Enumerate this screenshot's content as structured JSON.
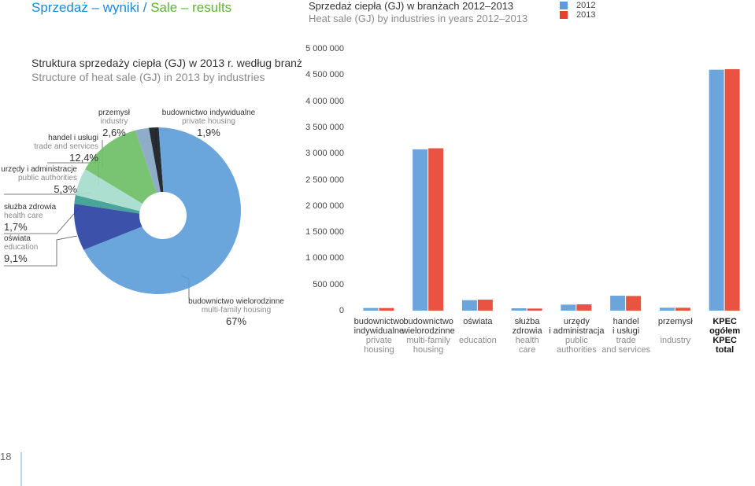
{
  "header": {
    "title_pl": "Sprzedaż – wyniki / ",
    "title_en": "Sale – results"
  },
  "page_number": "18",
  "chart_data": [
    {
      "type": "pie",
      "title": "Struktura sprzedaży ciepła (GJ) w 2013 r. według branż",
      "subtitle": "Structure of heat sale (GJ) in 2013 by industries",
      "categories": [
        "budownictwo indywidualne",
        "budownictwo wielorodzinne",
        "oświata",
        "służba zdrowia",
        "urzędy i administracje",
        "handel i usługi",
        "przemysł"
      ],
      "categories_en": [
        "private housing",
        "multi-family housing",
        "education",
        "health care",
        "public authorities",
        "trade and services",
        "industry"
      ],
      "values": [
        1.9,
        67,
        9.1,
        1.7,
        5.3,
        12.4,
        2.6
      ],
      "value_labels": [
        "1,9%",
        "67%",
        "9,1%",
        "1,7%",
        "5,3%",
        "12,4%",
        "2,6%"
      ],
      "colors": [
        "#151a22",
        "#5d9ed8",
        "#2b43a3",
        "#3a9c90",
        "#a6dccd",
        "#6cbf66",
        "#86a6c4"
      ]
    },
    {
      "type": "bar",
      "title": "Sprzedaż ciepła (GJ) w branżach 2012–2013",
      "subtitle": "Heat sale (GJ) by industries in years 2012–2013",
      "categories": [
        "budownictwo\nindywidualne",
        "budownictwo\nwielorodzinne",
        "oświata",
        "służba\nzdrowia",
        "urzędy\ni administracja",
        "handel\ni usługi",
        "przemysł",
        "KPEC\nogółem"
      ],
      "categories_en": [
        "private\nhousing",
        "multi-family\nhousing",
        "education",
        "health\ncare",
        "public\nauthorities",
        "trade\nand services",
        "industry",
        "KPEC\ntotal"
      ],
      "series": [
        {
          "name": "2012",
          "color": "#5b9bd8",
          "values": [
            50000,
            3080000,
            200000,
            45000,
            115000,
            285000,
            55000,
            4600000
          ]
        },
        {
          "name": "2013",
          "color": "#e8402e",
          "values": [
            50000,
            3100000,
            210000,
            40000,
            120000,
            280000,
            55000,
            4610000
          ]
        }
      ],
      "ylim": [
        0,
        5000000
      ],
      "yticks": [
        0,
        {
          "value": 500000,
          "label": "500 000"
        },
        {
          "value": 1000000,
          "label": "1 000 000"
        },
        {
          "value": 1500000,
          "label": "1 500 000"
        },
        {
          "value": 2000000,
          "label": "2 000 000"
        },
        {
          "value": 2500000,
          "label": "2 500 000"
        },
        {
          "value": 3000000,
          "label": "3 000 000"
        },
        {
          "value": 3500000,
          "label": "3 500 000"
        },
        {
          "value": 4000000,
          "label": "4 000 000"
        },
        {
          "value": 4500000,
          "label": "4 500 000"
        },
        {
          "value": 5000000,
          "label": "5 000 000"
        }
      ]
    }
  ]
}
